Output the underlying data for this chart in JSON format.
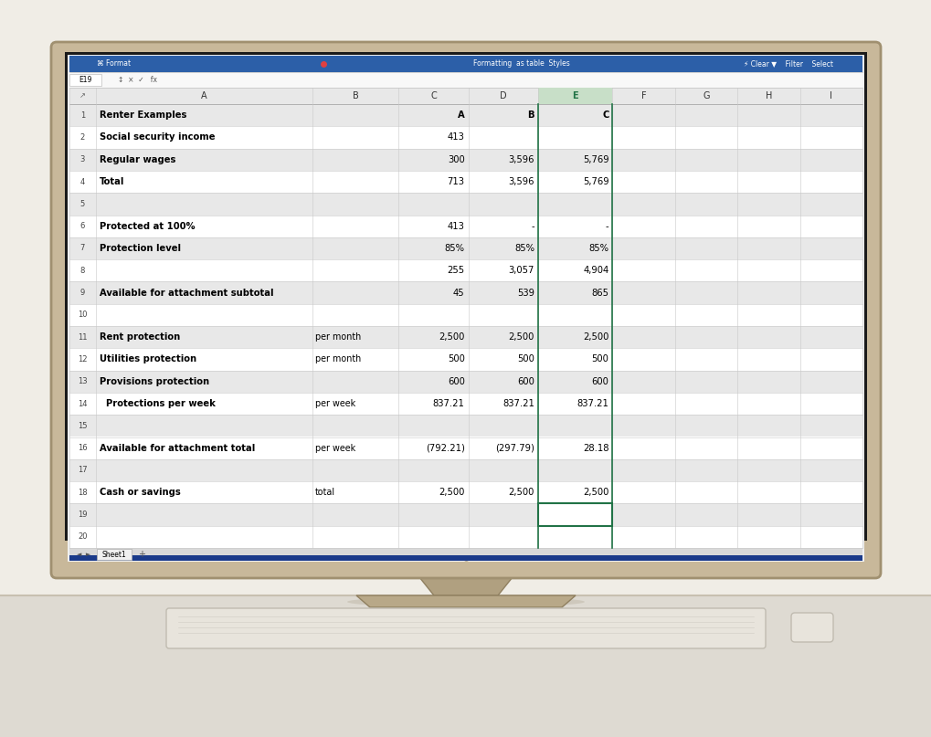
{
  "rows": [
    {
      "row": 1,
      "A": "Renter Examples",
      "B": "",
      "C": "A",
      "D": "B",
      "E": "C"
    },
    {
      "row": 2,
      "A": "Social security income",
      "B": "",
      "C": "413",
      "D": "",
      "E": ""
    },
    {
      "row": 3,
      "A": "Regular wages",
      "B": "",
      "C": "300",
      "D": "3,596",
      "E": "5,769"
    },
    {
      "row": 4,
      "A": "Total",
      "B": "",
      "C": "713",
      "D": "3,596",
      "E": "5,769"
    },
    {
      "row": 5,
      "A": "",
      "B": "",
      "C": "",
      "D": "",
      "E": ""
    },
    {
      "row": 6,
      "A": "Protected at 100%",
      "B": "",
      "C": "413",
      "D": "-",
      "E": "-"
    },
    {
      "row": 7,
      "A": "Protection level",
      "B": "",
      "C": "85%",
      "D": "85%",
      "E": "85%"
    },
    {
      "row": 8,
      "A": "",
      "B": "",
      "C": "255",
      "D": "3,057",
      "E": "4,904"
    },
    {
      "row": 9,
      "A": "Available for attachment subtotal",
      "B": "",
      "C": "45",
      "D": "539",
      "E": "865"
    },
    {
      "row": 10,
      "A": "",
      "B": "",
      "C": "",
      "D": "",
      "E": ""
    },
    {
      "row": 11,
      "A": "Rent protection",
      "B": "per month",
      "C": "2,500",
      "D": "2,500",
      "E": "2,500"
    },
    {
      "row": 12,
      "A": "Utilities protection",
      "B": "per month",
      "C": "500",
      "D": "500",
      "E": "500"
    },
    {
      "row": 13,
      "A": "Provisions protection",
      "B": "",
      "C": "600",
      "D": "600",
      "E": "600"
    },
    {
      "row": 14,
      "A": "  Protections per week",
      "B": "per week",
      "C": "837.21",
      "D": "837.21",
      "E": "837.21"
    },
    {
      "row": 15,
      "A": "",
      "B": "",
      "C": "",
      "D": "",
      "E": ""
    },
    {
      "row": 16,
      "A": "Available for attachment total",
      "B": "per week",
      "C": "(792.21)",
      "D": "(297.79)",
      "E": "28.18"
    },
    {
      "row": 17,
      "A": "",
      "B": "",
      "C": "",
      "D": "",
      "E": ""
    },
    {
      "row": 18,
      "A": "Cash or savings",
      "B": "total",
      "C": "2,500",
      "D": "2,500",
      "E": "2,500"
    },
    {
      "row": 19,
      "A": "",
      "B": "",
      "C": "",
      "D": "",
      "E": ""
    },
    {
      "row": 20,
      "A": "",
      "B": "",
      "C": "",
      "D": "",
      "E": ""
    }
  ],
  "bold_rows": [
    1,
    2,
    3,
    4,
    6,
    7,
    9,
    11,
    12,
    13,
    14,
    16,
    18
  ],
  "shaded_rows": [
    1,
    3,
    5,
    7,
    9,
    11,
    13,
    15,
    17,
    19
  ],
  "num_rows": 20,
  "bg_color": "#e8e4db",
  "wall_color": "#f0ede6",
  "desk_color": "#e8e2d8",
  "monitor_bezel_color": "#c8b89a",
  "monitor_bezel_dark": "#a09070",
  "monitor_inner": "#1a1a1a",
  "screen_bg": "#f0f0f0",
  "toolbar_blue": "#2c5fa8",
  "formula_bar_bg": "#f5f5f5",
  "row_shade": "#e8e8e8",
  "row_white": "#ffffff",
  "header_bg": "#e0e0e0",
  "grid_line": "#c8c8c8",
  "col_e_green": "#217346",
  "col_e_header_bg": "#c8dfc8",
  "selected_cell_border": "#217346",
  "stand_color": "#b8a888",
  "stand_dark": "#907860",
  "keyboard_color": "#e8e4dc"
}
